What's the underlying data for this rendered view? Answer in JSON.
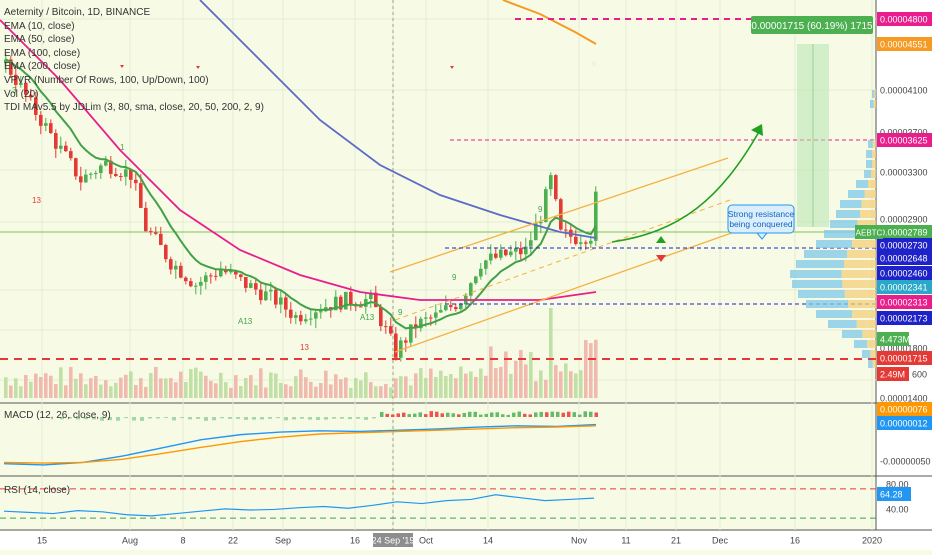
{
  "chart_data": [
    {
      "type": "candlestick",
      "title": "Aeternity / Bitcoin, 1D, BINANCE",
      "indicators": [
        "EMA (10, close)",
        "EMA (50, close)",
        "EMA (100, close)",
        "EMA (200, close)",
        "VPVR (Number Of Rows, 100, Up/Down, 100)",
        "Vol (20)",
        "TDI MAv5.5 by JDLim (3, 80, sma, close, 20, 50, 200, 2, 9)"
      ],
      "x_ticks": [
        "15",
        "Aug",
        "8",
        "22",
        "Sep",
        "16",
        "24 Sep '19",
        "Oct",
        "14",
        "Nov",
        "11",
        "21",
        "Dec",
        "16",
        "2020"
      ],
      "y_ticks": [
        "0.00004800",
        "0.00004551",
        "0.00004100",
        "0.00003700",
        "0.00003625",
        "0.00003300",
        "0.00002900",
        "0.00002789",
        "0.00002730",
        "0.00002648",
        "0.00002460",
        "0.00002341",
        "0.00002313",
        "0.00002173",
        "0.00001800",
        "0.00001715",
        "0.00001400"
      ],
      "price_labels": [
        {
          "value": "0.00004800",
          "color": "#e91e8c"
        },
        {
          "value": "0.00004551",
          "color": "#f59a23"
        },
        {
          "value": "0.00003625",
          "color": "#e91e8c"
        },
        {
          "value": "0.00002789",
          "color": "#4caf50"
        },
        {
          "value": "0.00002730",
          "color": "#1e22c8"
        },
        {
          "value": "0.00002648",
          "color": "#1e22c8"
        },
        {
          "value": "0.00002460",
          "color": "#1e22c8"
        },
        {
          "value": "0.00002341",
          "color": "#2aa8c8"
        },
        {
          "value": "0.00002313",
          "color": "#e91e8c"
        },
        {
          "value": "0.00002173",
          "color": "#1e22c8"
        },
        {
          "value": "0.00001715",
          "color": "#e53935"
        }
      ],
      "symbol_tag": "AEBTC",
      "volume_labels": [
        "4.473M",
        "2.49M",
        "600"
      ],
      "target_label": "0.00001715 (60.19%) 1715",
      "annotation": "Strong resistance being conquered",
      "marker_labels": [
        "13",
        "13",
        "9",
        "9",
        "9",
        "1",
        "3",
        "A13",
        "A13",
        "s"
      ],
      "support_level": 1.715e-05,
      "resistance_levels": [
        2.73e-05,
        2.313e-05
      ],
      "target_level": 4.8e-05,
      "channel": {
        "lower": [
          [
            1.835e-05,
            2.48e-05
          ]
        ],
        "upper": [
          [
            2.438e-05,
            3.43e-05
          ]
        ]
      },
      "last_close": 2.789e-05,
      "colors": {
        "up": "#4caf50",
        "down": "#e53935",
        "ema10": "#43a047",
        "ema50": "#e91e8c",
        "ema100": "#5b6bc8",
        "ema200": "#f59a23",
        "background": "#f7fbe6"
      }
    },
    {
      "type": "line",
      "title": "MACD (12, 26, close, 9)",
      "y_ticks": [
        "0.00000076",
        "0.00000012",
        "-0.00000050"
      ],
      "series": [
        {
          "color": "#2196f3",
          "values": [
            -5e-07,
            -5.2e-07,
            -4.8e-07,
            -3.8e-07,
            -2.5e-07,
            -1.2e-07,
            -4e-08,
            0,
            2e-08,
            1e-08,
            3e-08,
            5e-08,
            8e-08,
            1e-07,
            9e-08,
            1.2e-07
          ]
        },
        {
          "color": "#ff9800",
          "values": [
            -4.8e-07,
            -4.9e-07,
            -4.8e-07,
            -4.3e-07,
            -3.4e-07,
            -2.4e-07,
            -1.5e-07,
            -8e-08,
            -3e-08,
            -1e-08,
            1e-08,
            3e-08,
            5e-08,
            7e-08,
            8e-08,
            1e-07
          ]
        }
      ]
    },
    {
      "type": "line",
      "title": "RSI (14, close)",
      "y_ticks": [
        "80.00",
        "64.28",
        "40.00"
      ],
      "upper_band": 80,
      "lower_band": 20,
      "last_value": 64.28,
      "values": [
        42,
        40,
        38,
        43,
        41,
        36,
        34,
        38,
        42,
        46,
        44,
        45,
        48,
        50,
        47,
        52,
        58,
        55,
        60,
        62,
        70,
        65,
        60,
        62,
        64.28
      ]
    }
  ]
}
